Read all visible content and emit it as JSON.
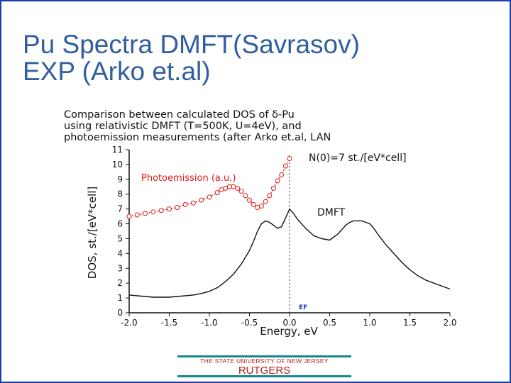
{
  "slide": {
    "title_line1": "Pu Spectra DMFT(Savrasov)",
    "title_line2": "EXP (Arko et.al)"
  },
  "footer": {
    "university": "THE STATE UNIVERSITY OF NEW JERSEY",
    "brand": "RUTGERS"
  },
  "colors": {
    "title": "#2f5f9e",
    "frame": "#1a3fa8",
    "photoemission": "#e21818",
    "dmft": "#111111",
    "ef_label": "#2233cc",
    "footer_bar": "#138a8a",
    "footer_text": "#b02020"
  },
  "chart_data": {
    "type": "line",
    "caption": [
      "Comparison between calculated DOS of δ-Pu",
      "using relativistic DMFT (T=500K, U=4eV), and",
      "photoemission measurements (after Arko et.al, LAN"
    ],
    "xlabel": "Energy, eV",
    "ylabel": "DOS, st./[eV*cell]",
    "xlim": [
      -2.0,
      2.0
    ],
    "ylim": [
      0,
      11
    ],
    "xticks": [
      "-2.0",
      "-1.5",
      "-1.0",
      "-0.5",
      "0.0",
      "0.5",
      "1.0",
      "1.5",
      "2.0"
    ],
    "yticks": [
      "0",
      "1",
      "2",
      "3",
      "4",
      "5",
      "6",
      "7",
      "8",
      "9",
      "10",
      "11"
    ],
    "grid": false,
    "annotations": {
      "n0": "N(0)=7 st./[eV*cell]",
      "dmft": "DMFT",
      "photo": "Photoemission (a.u.)",
      "ef": "EF"
    },
    "series": [
      {
        "name": "DMFT",
        "line": "solid",
        "x": [
          -2.0,
          -1.9,
          -1.8,
          -1.7,
          -1.6,
          -1.5,
          -1.4,
          -1.3,
          -1.2,
          -1.1,
          -1.0,
          -0.9,
          -0.8,
          -0.7,
          -0.6,
          -0.5,
          -0.45,
          -0.4,
          -0.35,
          -0.3,
          -0.25,
          -0.2,
          -0.15,
          -0.1,
          -0.05,
          0.0,
          0.05,
          0.1,
          0.2,
          0.3,
          0.4,
          0.5,
          0.6,
          0.7,
          0.75,
          0.8,
          0.85,
          0.9,
          0.95,
          1.0,
          1.05,
          1.1,
          1.2,
          1.3,
          1.4,
          1.5,
          1.6,
          1.7,
          1.8,
          1.9,
          2.0
        ],
        "values": [
          1.2,
          1.15,
          1.1,
          1.05,
          1.05,
          1.05,
          1.1,
          1.15,
          1.2,
          1.3,
          1.45,
          1.7,
          2.1,
          2.6,
          3.3,
          4.2,
          4.8,
          5.5,
          6.0,
          6.2,
          6.1,
          5.9,
          5.7,
          5.8,
          6.4,
          7.0,
          6.7,
          6.3,
          5.7,
          5.2,
          5.0,
          4.9,
          5.3,
          5.9,
          6.1,
          6.2,
          6.2,
          6.2,
          6.1,
          6.0,
          5.7,
          5.3,
          4.6,
          4.0,
          3.4,
          2.9,
          2.5,
          2.2,
          2.0,
          1.8,
          1.6
        ]
      },
      {
        "name": "Photoemission (a.u.)",
        "line": "dotted",
        "marker": "circle",
        "x": [
          -2.0,
          -1.9,
          -1.8,
          -1.7,
          -1.6,
          -1.5,
          -1.4,
          -1.3,
          -1.2,
          -1.1,
          -1.0,
          -0.9,
          -0.85,
          -0.8,
          -0.75,
          -0.7,
          -0.65,
          -0.6,
          -0.55,
          -0.5,
          -0.45,
          -0.4,
          -0.35,
          -0.3,
          -0.25,
          -0.2,
          -0.15,
          -0.1,
          -0.05,
          0.0
        ],
        "values": [
          6.5,
          6.6,
          6.7,
          6.8,
          6.9,
          7.0,
          7.1,
          7.3,
          7.4,
          7.6,
          7.8,
          8.1,
          8.3,
          8.4,
          8.5,
          8.5,
          8.4,
          8.2,
          7.9,
          7.6,
          7.3,
          7.1,
          7.2,
          7.5,
          7.9,
          8.4,
          8.9,
          9.3,
          9.9,
          10.4
        ]
      }
    ]
  }
}
